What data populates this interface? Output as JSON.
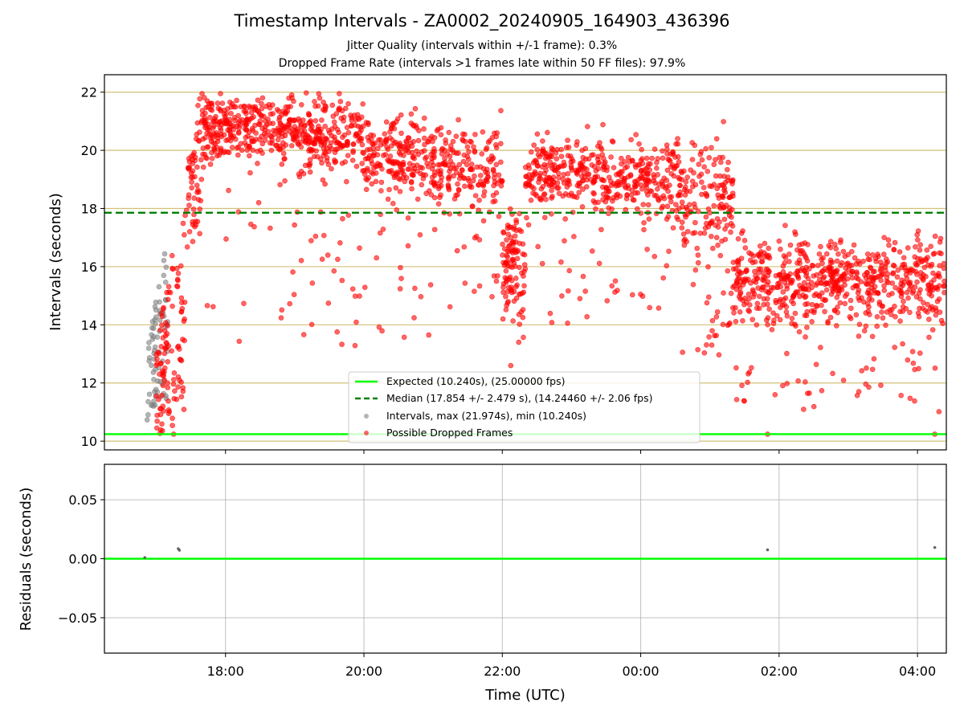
{
  "title": "Timestamp Intervals - ZA0002_20240905_164903_436396",
  "subtitle_1": "Jitter Quality (intervals within +/-1 frame): 0.3%",
  "subtitle_2": "Dropped Frame Rate (intervals >1 frames late within 50 FF files): 97.9%",
  "colors": {
    "expected": "#00ff00",
    "median": "#008000",
    "intervals": "#808080",
    "dropped": "#ff0000",
    "grid_top": "#d2c178",
    "grid_bottom": "#b0b0b0"
  },
  "chart_data": [
    {
      "type": "scatter",
      "ylabel": "Intervals (seconds)",
      "ylim": [
        9.7,
        22.6
      ],
      "yticks": [
        "10",
        "12",
        "14",
        "16",
        "18",
        "20",
        "22"
      ],
      "ytick_values": [
        10,
        12,
        14,
        16,
        18,
        20,
        22
      ],
      "grid": "horizontal",
      "legend_placement": "lower-center",
      "lines": [
        {
          "name": "Expected (10.240s), (25.00000 fps)",
          "y": 10.24,
          "style": "solid",
          "color": "#00ff00"
        },
        {
          "name": "Median (17.854 +/- 2.479 s), (14.24460 +/- 2.06 fps)",
          "y": 17.854,
          "style": "dashed",
          "color": "#008000"
        }
      ],
      "series": [
        {
          "name": "Intervals, max (21.974s), min (10.240s)",
          "color": "#808080",
          "x_range": [
            "16:52",
            "17:10"
          ],
          "y_range": [
            10.24,
            17.3
          ],
          "approx_point_count": 70
        },
        {
          "name": "Possible Dropped Frames",
          "color": "#ff0000",
          "segments": [
            {
              "from": "17:00",
              "to": "17:25",
              "y_from": 10.24,
              "y_to": 17.5,
              "approx_points": 110
            },
            {
              "from": "17:25",
              "to": "17:40",
              "y_from": 16.5,
              "y_to": 21.5,
              "approx_points": 60
            },
            {
              "from": "17:40",
              "to": "19:00",
              "center": 20.8,
              "spread": 0.9,
              "outlier_min": 13.4,
              "approx_points": 320
            },
            {
              "from": "19:00",
              "to": "20:00",
              "center": 20.6,
              "spread": 1.0,
              "outlier_min": 13.2,
              "approx_points": 240
            },
            {
              "from": "20:00",
              "to": "21:00",
              "center": 19.8,
              "spread": 1.1,
              "outlier_min": 13.5,
              "approx_points": 220
            },
            {
              "from": "21:00",
              "to": "22:00",
              "center": 19.4,
              "spread": 1.2,
              "outlier_min": 14.6,
              "approx_points": 200
            },
            {
              "from": "22:00",
              "to": "22:20",
              "center": 16.2,
              "spread": 1.6,
              "outlier_min": 12.4,
              "approx_points": 110
            },
            {
              "from": "22:20",
              "to": "23:30",
              "center": 19.3,
              "spread": 1.0,
              "outlier_min": 14.0,
              "approx_points": 250
            },
            {
              "from": "23:30",
              "to": "00:35",
              "center": 19.0,
              "spread": 1.1,
              "outlier_min": 14.5,
              "approx_points": 220
            },
            {
              "from": "00:35",
              "to": "01:20",
              "center": 18.4,
              "spread": 1.5,
              "outlier_min": 12.9,
              "approx_points": 170
            },
            {
              "from": "01:20",
              "to": "04:25",
              "center": 15.6,
              "spread": 1.2,
              "outlier_min": 11.0,
              "approx_points": 700
            }
          ],
          "spot_values": [
            {
              "x": "17:15",
              "y": 10.24
            },
            {
              "x": "01:50",
              "y": 10.24
            },
            {
              "x": "04:15",
              "y": 10.24
            },
            {
              "x": "19:10",
              "y": 21.974
            }
          ]
        }
      ],
      "legend": [
        "Expected (10.240s), (25.00000 fps)",
        "Median (17.854 +/- 2.479 s), (14.24460 +/- 2.06 fps)",
        "Intervals, max (21.974s), min (10.240s)",
        "Possible Dropped Frames"
      ]
    },
    {
      "type": "scatter",
      "xlabel": "Time (UTC)",
      "ylabel": "Residuals (seconds)",
      "xlim": [
        "16:15",
        "04:25"
      ],
      "xticks": [
        "18:00",
        "20:00",
        "22:00",
        "00:00",
        "02:00",
        "04:00"
      ],
      "ylim": [
        -0.08,
        0.08
      ],
      "yticks": [
        "0.05",
        "0.00",
        "−0.05"
      ],
      "ytick_values": [
        0.05,
        0.0,
        -0.05
      ],
      "grid": "both",
      "zero_line": {
        "y": 0.0,
        "color": "#00ff00"
      },
      "points": [
        {
          "x": "16:50",
          "y": 0.001
        },
        {
          "x": "17:19",
          "y": 0.0085
        },
        {
          "x": "17:20",
          "y": 0.0072
        },
        {
          "x": "01:50",
          "y": 0.0075
        },
        {
          "x": "04:15",
          "y": 0.0095
        }
      ]
    }
  ]
}
